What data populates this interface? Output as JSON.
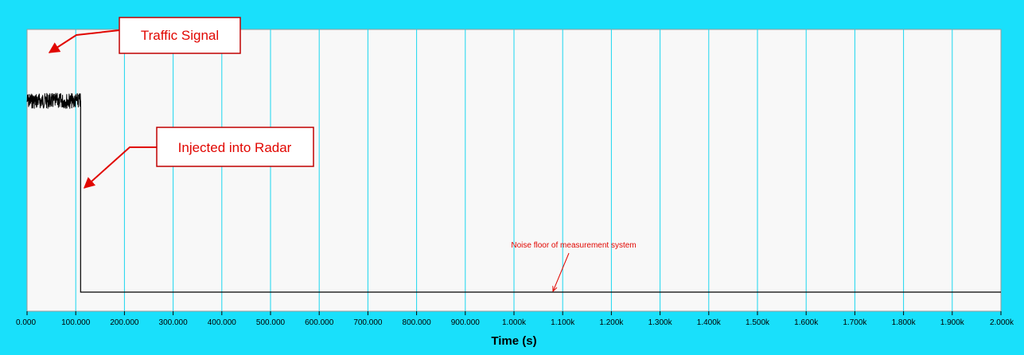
{
  "chart_data": {
    "type": "line",
    "xlabel": "Time (s)",
    "x_tick_labels": [
      "0.000",
      "100.000",
      "200.000",
      "300.000",
      "400.000",
      "500.000",
      "600.000",
      "700.000",
      "800.000",
      "900.000",
      "1.000k",
      "1.100k",
      "1.200k",
      "1.300k",
      "1.400k",
      "1.500k",
      "1.600k",
      "1.700k",
      "1.800k",
      "1.900k",
      "2.000k"
    ],
    "x_ticks": [
      0,
      100,
      200,
      300,
      400,
      500,
      600,
      700,
      800,
      900,
      1000,
      1100,
      1200,
      1300,
      1400,
      1500,
      1600,
      1700,
      1800,
      1900,
      2000
    ],
    "xlim": [
      0,
      2000
    ],
    "ylim": [
      0,
      1
    ],
    "y_ticks_shown": false,
    "grid": "vertical",
    "legend": "none",
    "series": [
      {
        "description": "measured level",
        "x": [
          0,
          110,
          110,
          2000
        ],
        "y": [
          0.84,
          0.84,
          0.0,
          0.0
        ],
        "noisy_until_x": 110
      }
    ],
    "annotations": [
      {
        "text": "Traffic Signal",
        "boxed": true,
        "points_to_x": 40,
        "points_to_y": 0.84
      },
      {
        "text": "Injected into Radar",
        "boxed": true,
        "points_to_x": 112,
        "points_to_y": 0.38
      },
      {
        "text": "Noise floor of measurement system",
        "boxed": false,
        "points_to_x": 1075,
        "points_to_y": 0.0
      }
    ]
  },
  "colors": {
    "frame": "#19e0fb",
    "plot_background": "#f8f8f8",
    "grid": "#19d6ef",
    "trace": "#000000",
    "annotation": "#e10600",
    "box_fill": "#ffffff"
  }
}
